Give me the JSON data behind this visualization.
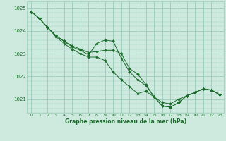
{
  "bg_color": "#ceeadf",
  "grid_color": "#99ccbb",
  "line_color": "#1a6b2a",
  "marker_color": "#1a6b2a",
  "xlabel": "Graphe pression niveau de la mer (hPa)",
  "ylim": [
    1020.4,
    1025.3
  ],
  "xlim": [
    -0.5,
    23.5
  ],
  "yticks": [
    1021,
    1022,
    1023,
    1024,
    1025
  ],
  "xticks": [
    0,
    1,
    2,
    3,
    4,
    5,
    6,
    7,
    8,
    9,
    10,
    11,
    12,
    13,
    14,
    15,
    16,
    17,
    18,
    19,
    20,
    21,
    22,
    23
  ],
  "series": [
    [
      1024.85,
      1024.55,
      1024.15,
      1023.8,
      1023.55,
      1023.35,
      1023.2,
      1023.05,
      1023.1,
      1023.15,
      1023.15,
      1023.0,
      1022.35,
      1022.1,
      1021.65,
      1021.1,
      1020.85,
      1020.8,
      1021.0,
      1021.15,
      1021.3,
      1021.45,
      1021.4,
      1021.2
    ],
    [
      1024.85,
      1024.55,
      1024.15,
      1023.8,
      1023.55,
      1023.3,
      1023.15,
      1022.95,
      1023.45,
      1023.6,
      1023.55,
      1022.8,
      1022.2,
      1021.85,
      1021.6,
      1021.1,
      1020.7,
      1020.65,
      1020.85,
      1021.15,
      1021.3,
      1021.45,
      1021.4,
      1021.2
    ],
    [
      1024.85,
      1024.55,
      1024.15,
      1023.75,
      1023.45,
      1023.2,
      1023.0,
      1022.85,
      1022.85,
      1022.7,
      1022.2,
      1021.85,
      1021.55,
      1021.25,
      1021.35,
      1021.1,
      1020.7,
      1020.65,
      1020.85,
      1021.15,
      1021.3,
      1021.45,
      1021.4,
      1021.2
    ]
  ]
}
